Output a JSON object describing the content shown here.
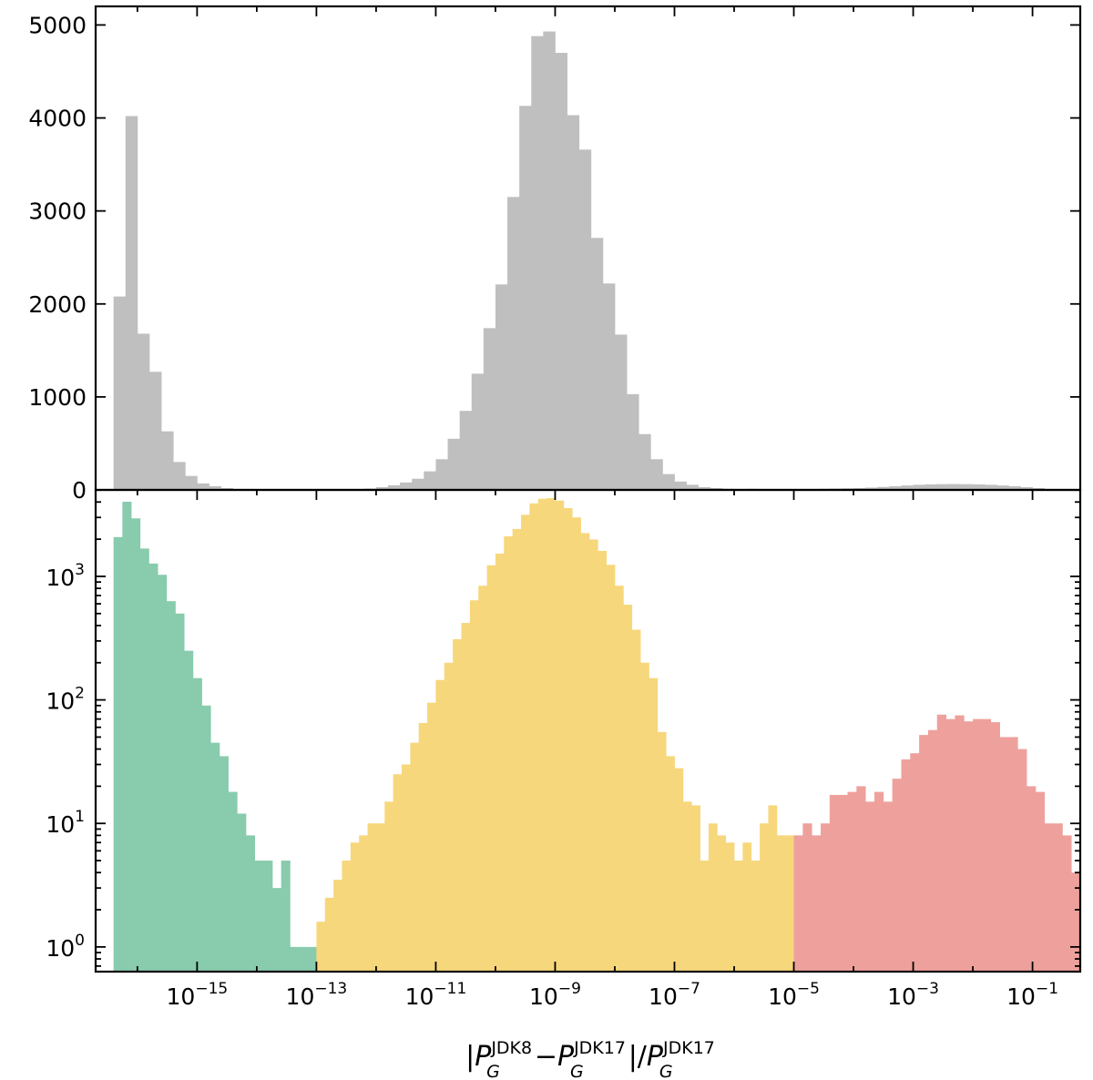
{
  "chart_data": [
    {
      "panel": "top",
      "type": "bar",
      "yscale": "linear",
      "xscale": "log",
      "xlim_exponent": [
        -16.7,
        -0.2
      ],
      "ylim": [
        0,
        5200
      ],
      "yticks": [
        0,
        1000,
        2000,
        3000,
        4000,
        5000
      ],
      "ytick_labels": [
        "0",
        "1000",
        "2000",
        "3000",
        "4000",
        "5000"
      ],
      "bar_color": "#bfbfbf",
      "bins": [
        {
          "x_exp": [
            -16.4,
            -16.2
          ],
          "y": 2080
        },
        {
          "x_exp": [
            -16.2,
            -16.0
          ],
          "y": 4020
        },
        {
          "x_exp": [
            -16.0,
            -15.8
          ],
          "y": 1680
        },
        {
          "x_exp": [
            -15.8,
            -15.6
          ],
          "y": 1270
        },
        {
          "x_exp": [
            -15.6,
            -15.4
          ],
          "y": 630
        },
        {
          "x_exp": [
            -15.4,
            -15.2
          ],
          "y": 300
        },
        {
          "x_exp": [
            -15.2,
            -15.0
          ],
          "y": 150
        },
        {
          "x_exp": [
            -15.0,
            -14.8
          ],
          "y": 70
        },
        {
          "x_exp": [
            -14.8,
            -14.6
          ],
          "y": 40
        },
        {
          "x_exp": [
            -14.6,
            -14.4
          ],
          "y": 20
        },
        {
          "x_exp": [
            -14.4,
            -14.2
          ],
          "y": 8
        },
        {
          "x_exp": [
            -14.2,
            -14.0
          ],
          "y": 5
        },
        {
          "x_exp": [
            -14.0,
            -13.8
          ],
          "y": 3
        },
        {
          "x_exp": [
            -13.8,
            -13.6
          ],
          "y": 3
        },
        {
          "x_exp": [
            -13.6,
            -13.4
          ],
          "y": 2
        },
        {
          "x_exp": [
            -13.4,
            -13.2
          ],
          "y": 2
        },
        {
          "x_exp": [
            -13.2,
            -13.0
          ],
          "y": 2
        },
        {
          "x_exp": [
            -13.0,
            -12.8
          ],
          "y": 3
        },
        {
          "x_exp": [
            -12.8,
            -12.6
          ],
          "y": 5
        },
        {
          "x_exp": [
            -12.6,
            -12.4
          ],
          "y": 7
        },
        {
          "x_exp": [
            -12.4,
            -12.2
          ],
          "y": 10
        },
        {
          "x_exp": [
            -12.2,
            -12.0
          ],
          "y": 15
        },
        {
          "x_exp": [
            -12.0,
            -11.8
          ],
          "y": 30
        },
        {
          "x_exp": [
            -11.8,
            -11.6
          ],
          "y": 50
        },
        {
          "x_exp": [
            -11.6,
            -11.4
          ],
          "y": 80
        },
        {
          "x_exp": [
            -11.4,
            -11.2
          ],
          "y": 120
        },
        {
          "x_exp": [
            -11.2,
            -11.0
          ],
          "y": 200
        },
        {
          "x_exp": [
            -11.0,
            -10.8
          ],
          "y": 330
        },
        {
          "x_exp": [
            -10.8,
            -10.6
          ],
          "y": 550
        },
        {
          "x_exp": [
            -10.6,
            -10.4
          ],
          "y": 850
        },
        {
          "x_exp": [
            -10.4,
            -10.2
          ],
          "y": 1250
        },
        {
          "x_exp": [
            -10.2,
            -10.0
          ],
          "y": 1740
        },
        {
          "x_exp": [
            -10.0,
            -9.8
          ],
          "y": 2210
        },
        {
          "x_exp": [
            -9.8,
            -9.6
          ],
          "y": 3150
        },
        {
          "x_exp": [
            -9.6,
            -9.4
          ],
          "y": 4130
        },
        {
          "x_exp": [
            -9.4,
            -9.2
          ],
          "y": 4880
        },
        {
          "x_exp": [
            -9.2,
            -9.0
          ],
          "y": 4930
        },
        {
          "x_exp": [
            -9.0,
            -8.8
          ],
          "y": 4700
        },
        {
          "x_exp": [
            -8.8,
            -8.6
          ],
          "y": 4030
        },
        {
          "x_exp": [
            -8.6,
            -8.4
          ],
          "y": 3660
        },
        {
          "x_exp": [
            -8.4,
            -8.2
          ],
          "y": 2710
        },
        {
          "x_exp": [
            -8.2,
            -8.0
          ],
          "y": 2220
        },
        {
          "x_exp": [
            -8.0,
            -7.8
          ],
          "y": 1670
        },
        {
          "x_exp": [
            -7.8,
            -7.6
          ],
          "y": 1030
        },
        {
          "x_exp": [
            -7.6,
            -7.4
          ],
          "y": 600
        },
        {
          "x_exp": [
            -7.4,
            -7.2
          ],
          "y": 330
        },
        {
          "x_exp": [
            -7.2,
            -7.0
          ],
          "y": 170
        },
        {
          "x_exp": [
            -7.0,
            -6.8
          ],
          "y": 90
        },
        {
          "x_exp": [
            -6.8,
            -6.6
          ],
          "y": 55
        },
        {
          "x_exp": [
            -6.6,
            -6.4
          ],
          "y": 30
        },
        {
          "x_exp": [
            -6.4,
            -6.2
          ],
          "y": 20
        },
        {
          "x_exp": [
            -6.2,
            -6.0
          ],
          "y": 13
        },
        {
          "x_exp": [
            -6.0,
            -5.8
          ],
          "y": 10
        },
        {
          "x_exp": [
            -5.8,
            -5.6
          ],
          "y": 12
        },
        {
          "x_exp": [
            -5.6,
            -5.4
          ],
          "y": 10
        },
        {
          "x_exp": [
            -5.4,
            -5.2
          ],
          "y": 10
        },
        {
          "x_exp": [
            -5.2,
            -5.0
          ],
          "y": 10
        },
        {
          "x_exp": [
            -5.0,
            -4.8
          ],
          "y": 10
        },
        {
          "x_exp": [
            -4.8,
            -4.6
          ],
          "y": 10
        },
        {
          "x_exp": [
            -4.6,
            -4.4
          ],
          "y": 12
        },
        {
          "x_exp": [
            -4.4,
            -4.2
          ],
          "y": 15
        },
        {
          "x_exp": [
            -4.2,
            -4.0
          ],
          "y": 17
        },
        {
          "x_exp": [
            -4.0,
            -3.8
          ],
          "y": 20
        },
        {
          "x_exp": [
            -3.8,
            -3.6
          ],
          "y": 25
        },
        {
          "x_exp": [
            -3.6,
            -3.4
          ],
          "y": 32
        },
        {
          "x_exp": [
            -3.4,
            -3.2
          ],
          "y": 40
        },
        {
          "x_exp": [
            -3.2,
            -3.0
          ],
          "y": 48
        },
        {
          "x_exp": [
            -3.0,
            -2.8
          ],
          "y": 55
        },
        {
          "x_exp": [
            -2.8,
            -2.6
          ],
          "y": 60
        },
        {
          "x_exp": [
            -2.6,
            -2.4
          ],
          "y": 62
        },
        {
          "x_exp": [
            -2.4,
            -2.2
          ],
          "y": 63
        },
        {
          "x_exp": [
            -2.2,
            -2.0
          ],
          "y": 62
        },
        {
          "x_exp": [
            -2.0,
            -1.8
          ],
          "y": 60
        },
        {
          "x_exp": [
            -1.8,
            -1.6
          ],
          "y": 55
        },
        {
          "x_exp": [
            -1.6,
            -1.4
          ],
          "y": 48
        },
        {
          "x_exp": [
            -1.4,
            -1.2
          ],
          "y": 40
        },
        {
          "x_exp": [
            -1.2,
            -1.0
          ],
          "y": 30
        },
        {
          "x_exp": [
            -1.0,
            -0.8
          ],
          "y": 20
        },
        {
          "x_exp": [
            -0.8,
            -0.6
          ],
          "y": 10
        },
        {
          "x_exp": [
            -0.6,
            -0.4
          ],
          "y": 5
        }
      ]
    },
    {
      "panel": "bottom",
      "type": "bar",
      "yscale": "log",
      "xscale": "log",
      "xlim_exponent": [
        -16.7,
        -0.2
      ],
      "ylim_exponent": [
        -0.2,
        3.7
      ],
      "yticks_exponent": [
        0,
        1,
        2,
        3
      ],
      "ytick_base": "10",
      "ytick_exponents": [
        "0",
        "1",
        "2",
        "3"
      ],
      "xticks_exponent": [
        -15,
        -13,
        -11,
        -9,
        -7,
        -5,
        -3,
        -1
      ],
      "xtick_base": "10",
      "xtick_exponents": [
        "−15",
        "−13",
        "−11",
        "−9",
        "−7",
        "−5",
        "−3",
        "−1"
      ],
      "series": [
        {
          "color": "#88cbad",
          "x_exp_range": [
            -16.4,
            -13.0
          ],
          "values": [
            2080,
            4020,
            2950,
            1680,
            1270,
            1030,
            630,
            500,
            250,
            150,
            90,
            45,
            35,
            18,
            12,
            8,
            5,
            5,
            3,
            5,
            1,
            1,
            1
          ]
        },
        {
          "color": "#f7d77c",
          "x_exp_range": [
            -13.0,
            -5.0
          ],
          "values": [
            1.6,
            2.5,
            3.5,
            5,
            7,
            8,
            10,
            10,
            15,
            25,
            30,
            45,
            65,
            95,
            145,
            200,
            310,
            420,
            640,
            840,
            1230,
            1530,
            2110,
            2420,
            3150,
            3900,
            4250,
            4300,
            4110,
            3570,
            3000,
            2240,
            1990,
            1610,
            1240,
            840,
            590,
            370,
            200,
            150,
            55,
            35,
            28,
            15,
            14,
            5,
            10,
            8,
            7,
            5,
            7,
            5,
            10,
            14,
            8,
            8
          ]
        },
        {
          "color": "#eea19c",
          "x_exp_range": [
            -5.0,
            -0.2
          ],
          "values": [
            8,
            10,
            8,
            10,
            17,
            17,
            18,
            20,
            15,
            18,
            15,
            23,
            33,
            37,
            52,
            57,
            76,
            70,
            75,
            67,
            70,
            70,
            66,
            50,
            50,
            40,
            20,
            18,
            10,
            10,
            8,
            4
          ]
        }
      ]
    }
  ],
  "xlabel": {
    "bar_left": "|",
    "p1": "P",
    "p1_sub": "G",
    "p1_sup": "JDK8",
    "minus": "−",
    "p2": "P",
    "p2_sub": "G",
    "p2_sup": "JDK17",
    "bar_right": "|",
    "slash": "/",
    "p3": "P",
    "p3_sub": "G",
    "p3_sup": "JDK17"
  }
}
